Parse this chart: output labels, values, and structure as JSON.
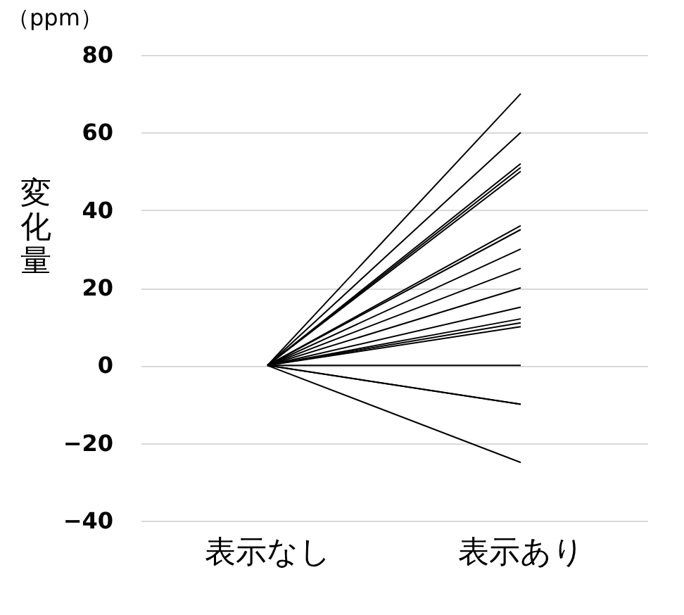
{
  "chart_data": {
    "type": "line",
    "categories": [
      "表示なし",
      "表示あり"
    ],
    "ylabel": "変化量",
    "annotations": [
      "（ppm）"
    ],
    "ylim": [
      -40,
      80
    ],
    "yticks": [
      -40,
      -20,
      0,
      20,
      40,
      60,
      80
    ],
    "grid": "y",
    "legend": false,
    "line_style": "solid",
    "marker": "none",
    "series": [
      {
        "color": "#000000",
        "values": [
          0,
          70
        ]
      },
      {
        "color": "#000000",
        "values": [
          0,
          60
        ]
      },
      {
        "color": "#000000",
        "values": [
          0,
          52
        ]
      },
      {
        "color": "#000000",
        "values": [
          0,
          51
        ]
      },
      {
        "color": "#000000",
        "values": [
          0,
          50
        ]
      },
      {
        "color": "#000000",
        "values": [
          0,
          36
        ]
      },
      {
        "color": "#000000",
        "values": [
          0,
          35
        ]
      },
      {
        "color": "#000000",
        "values": [
          0,
          30
        ]
      },
      {
        "color": "#000000",
        "values": [
          0,
          25
        ]
      },
      {
        "color": "#000000",
        "values": [
          0,
          20
        ]
      },
      {
        "color": "#000000",
        "values": [
          0,
          15
        ]
      },
      {
        "color": "#000000",
        "values": [
          0,
          12
        ]
      },
      {
        "color": "#000000",
        "values": [
          0,
          11
        ]
      },
      {
        "color": "#000000",
        "values": [
          0,
          10
        ]
      },
      {
        "color": "#000000",
        "values": [
          0,
          0
        ]
      },
      {
        "color": "#000000",
        "values": [
          0,
          -10
        ]
      },
      {
        "color": "#000000",
        "values": [
          0,
          -10
        ]
      },
      {
        "color": "#000000",
        "values": [
          0,
          -25
        ]
      }
    ]
  }
}
